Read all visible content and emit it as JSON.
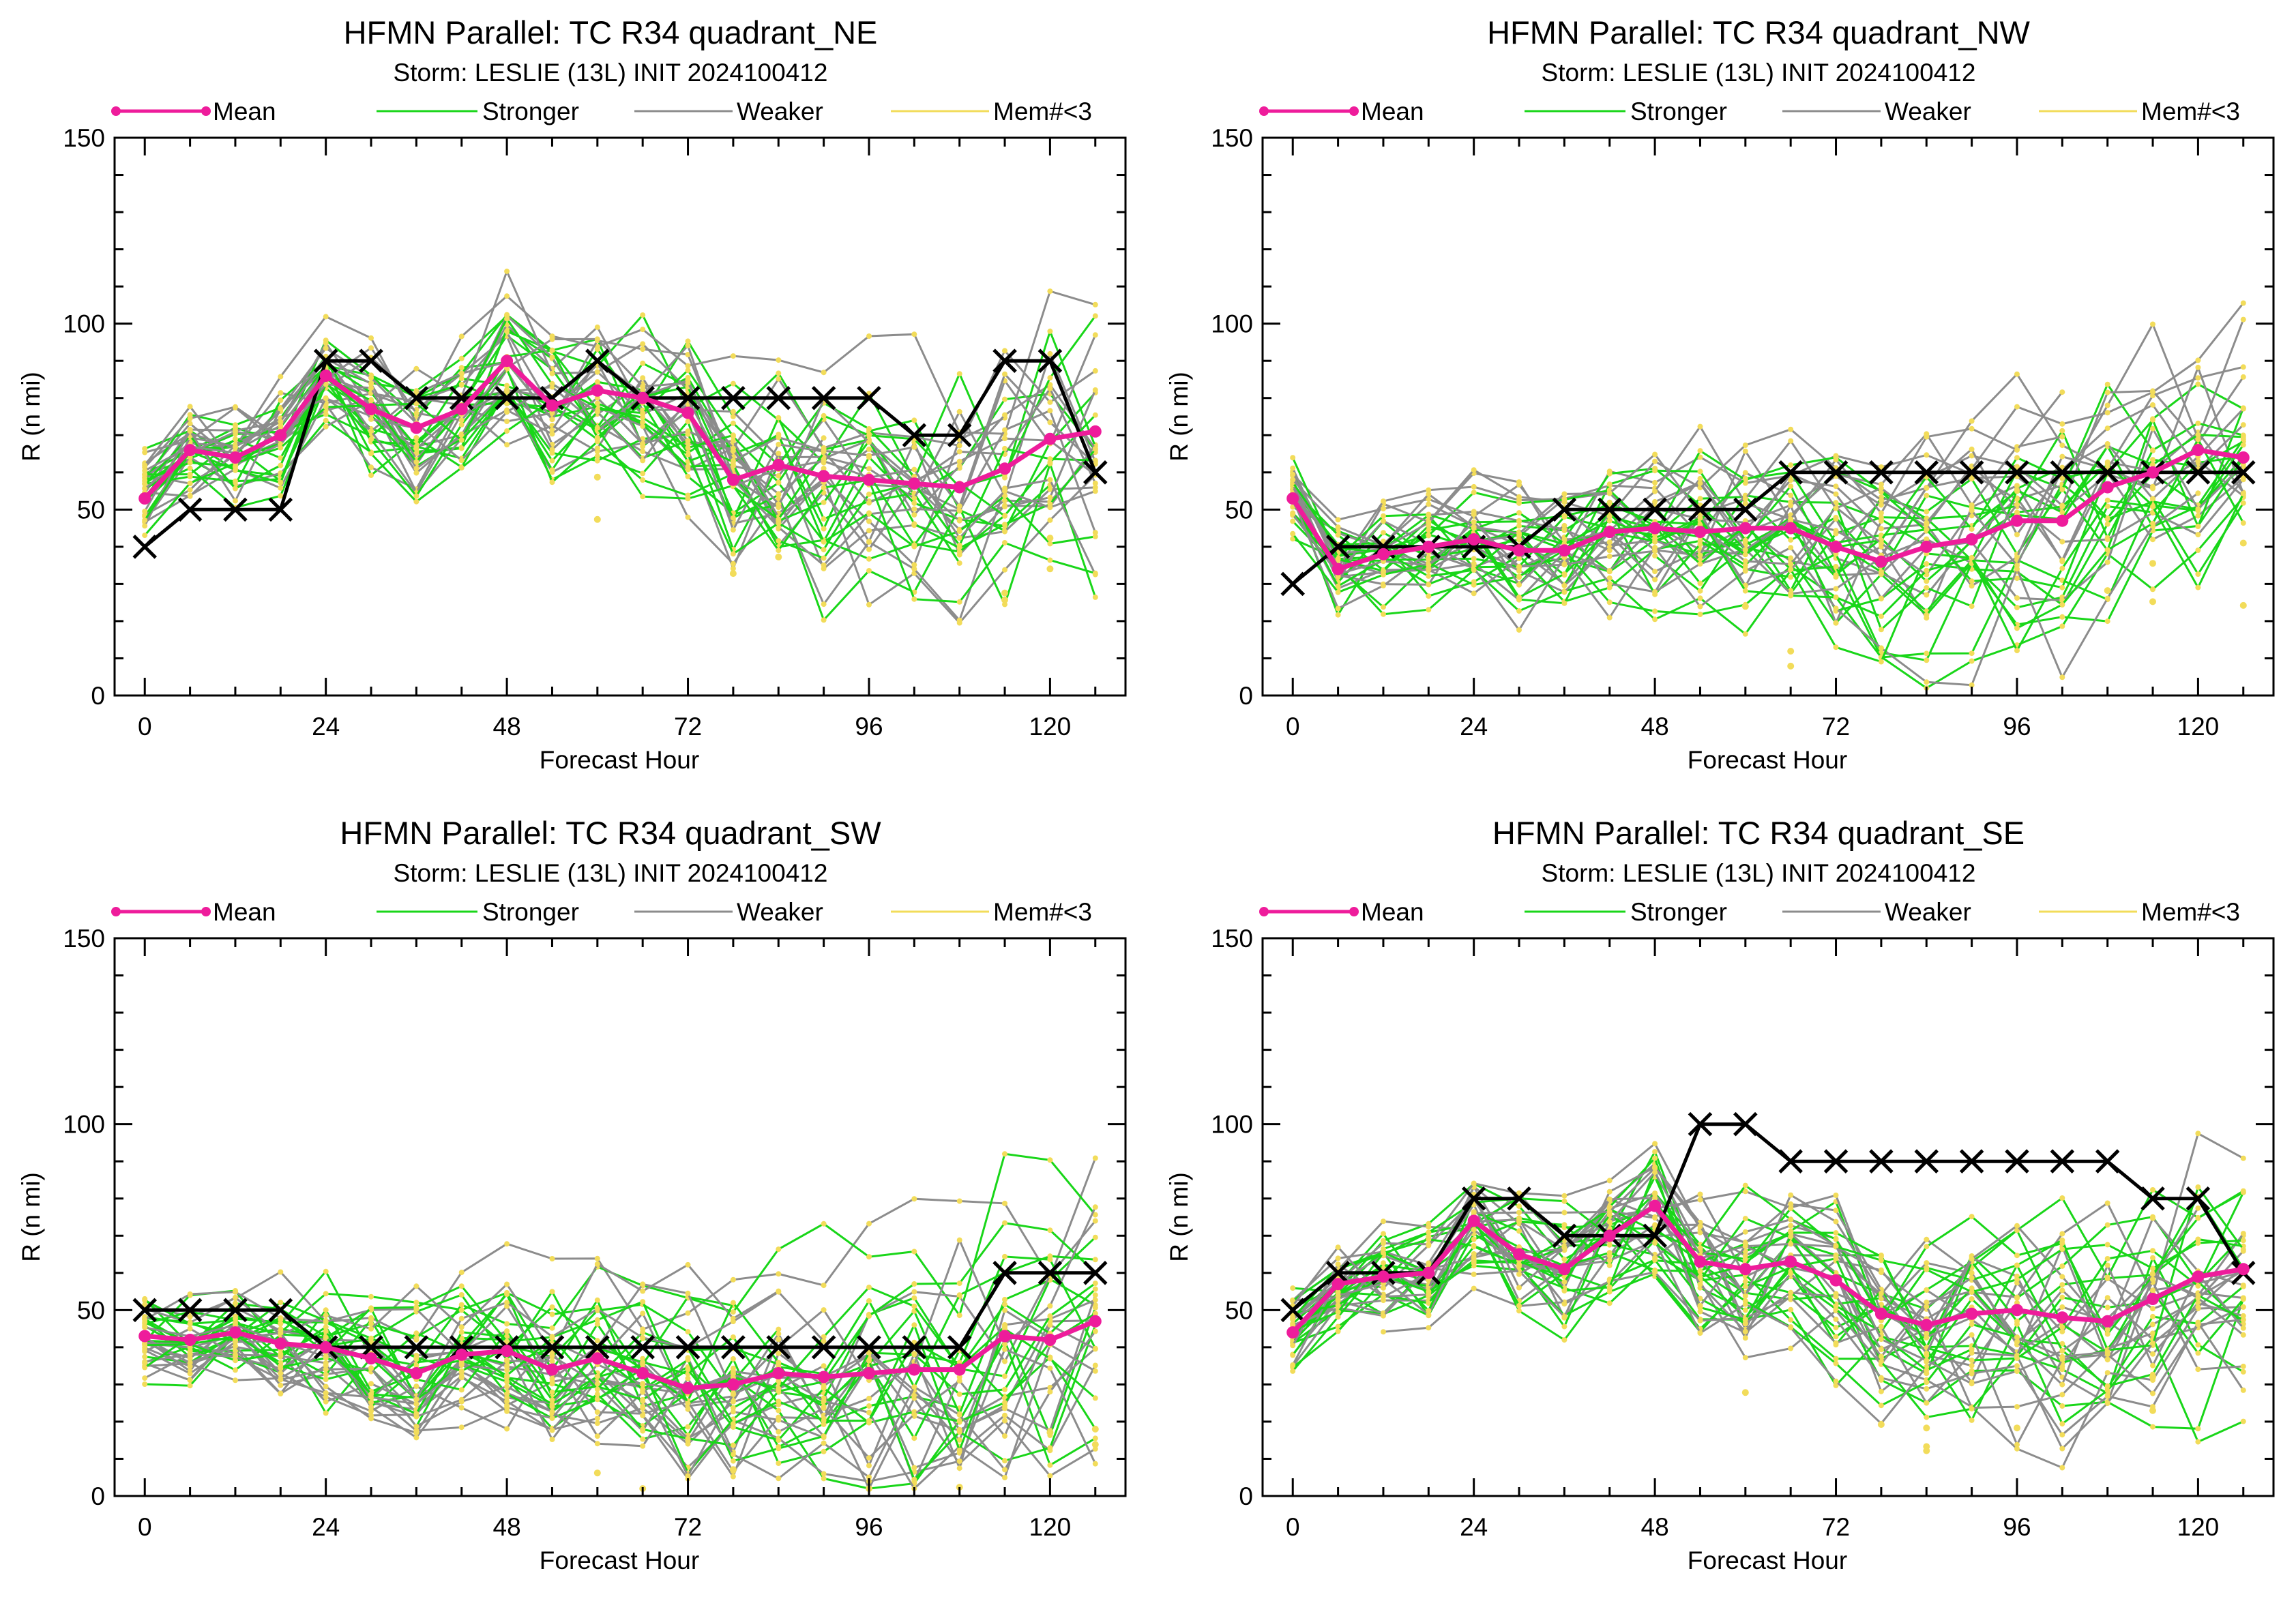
{
  "legend": {
    "mean": "Mean",
    "stronger": "Stronger",
    "weaker": "Weaker",
    "mem": "Mem#<3",
    "colors": {
      "mean": "#ee1c9b",
      "stronger": "#19d619",
      "weaker": "#8c8c8c",
      "mem": "#f2dc5a",
      "best_track": "#000000"
    }
  },
  "chart_data": [
    {
      "type": "line",
      "title": "HFMN Parallel: TC  R34 quadrant_NE",
      "subtitle": "Storm: LESLIE (13L) INIT 2024100412",
      "xlabel": "Forecast Hour",
      "ylabel": "R (n mi)",
      "xlim": [
        -4,
        130
      ],
      "ylim": [
        0,
        150
      ],
      "xticks": [
        0,
        24,
        48,
        72,
        96,
        120
      ],
      "yticks": [
        0,
        50,
        100,
        150
      ],
      "legend_position": "top",
      "x": [
        0,
        6,
        12,
        18,
        24,
        30,
        36,
        42,
        48,
        54,
        60,
        66,
        72,
        78,
        84,
        90,
        96,
        102,
        108,
        114,
        120,
        126
      ],
      "series": [
        {
          "name": "Mean",
          "values": [
            53,
            66,
            64,
            70,
            86,
            77,
            72,
            77,
            90,
            78,
            82,
            80,
            76,
            58,
            62,
            59,
            58,
            57,
            56,
            61,
            69,
            71
          ]
        },
        {
          "values": [
            40,
            50,
            50,
            50,
            90,
            90,
            80,
            80,
            80,
            80,
            90,
            80,
            80,
            80,
            80,
            80,
            80,
            70,
            70,
            90,
            90,
            60
          ]
        }
      ]
    },
    {
      "type": "line",
      "title": "HFMN Parallel: TC  R34 quadrant_NW",
      "subtitle": "Storm: LESLIE (13L) INIT 2024100412",
      "xlabel": "Forecast Hour",
      "ylabel": "R (n mi)",
      "xlim": [
        -4,
        130
      ],
      "ylim": [
        0,
        150
      ],
      "xticks": [
        0,
        24,
        48,
        72,
        96,
        120
      ],
      "yticks": [
        0,
        50,
        100,
        150
      ],
      "legend_position": "top",
      "x": [
        0,
        6,
        12,
        18,
        24,
        30,
        36,
        42,
        48,
        54,
        60,
        66,
        72,
        78,
        84,
        90,
        96,
        102,
        108,
        114,
        120,
        126
      ],
      "series": [
        {
          "name": "Mean",
          "values": [
            53,
            34,
            38,
            40,
            42,
            39,
            39,
            44,
            45,
            44,
            45,
            45,
            40,
            36,
            40,
            42,
            47,
            47,
            56,
            60,
            66,
            64
          ]
        },
        {
          "values": [
            30,
            40,
            40,
            40,
            40,
            40,
            50,
            50,
            50,
            50,
            50,
            60,
            60,
            60,
            60,
            60,
            60,
            60,
            60,
            60,
            60,
            60
          ]
        }
      ]
    },
    {
      "type": "line",
      "title": "HFMN Parallel: TC  R34 quadrant_SW",
      "subtitle": "Storm: LESLIE (13L) INIT 2024100412",
      "xlabel": "Forecast Hour",
      "ylabel": "R (n mi)",
      "xlim": [
        -4,
        130
      ],
      "ylim": [
        0,
        150
      ],
      "xticks": [
        0,
        24,
        48,
        72,
        96,
        120
      ],
      "yticks": [
        0,
        50,
        100,
        150
      ],
      "legend_position": "top",
      "x": [
        0,
        6,
        12,
        18,
        24,
        30,
        36,
        42,
        48,
        54,
        60,
        66,
        72,
        78,
        84,
        90,
        96,
        102,
        108,
        114,
        120,
        126
      ],
      "series": [
        {
          "name": "Mean",
          "values": [
            43,
            42,
            44,
            41,
            40,
            37,
            33,
            38,
            39,
            34,
            37,
            33,
            29,
            30,
            33,
            32,
            33,
            34,
            34,
            43,
            42,
            47
          ]
        },
        {
          "values": [
            50,
            50,
            50,
            50,
            40,
            40,
            40,
            40,
            40,
            40,
            40,
            40,
            40,
            40,
            40,
            40,
            40,
            40,
            40,
            60,
            60,
            60
          ]
        }
      ]
    },
    {
      "type": "line",
      "title": "HFMN Parallel: TC  R34 quadrant_SE",
      "subtitle": "Storm: LESLIE (13L) INIT 2024100412",
      "xlabel": "Forecast Hour",
      "ylabel": "R (n mi)",
      "xlim": [
        -4,
        130
      ],
      "ylim": [
        0,
        150
      ],
      "xticks": [
        0,
        24,
        48,
        72,
        96,
        120
      ],
      "yticks": [
        0,
        50,
        100,
        150
      ],
      "legend_position": "top",
      "x": [
        0,
        6,
        12,
        18,
        24,
        30,
        36,
        42,
        48,
        54,
        60,
        66,
        72,
        78,
        84,
        90,
        96,
        102,
        108,
        114,
        120,
        126
      ],
      "series": [
        {
          "name": "Mean",
          "values": [
            44,
            57,
            59,
            60,
            74,
            65,
            61,
            70,
            78,
            63,
            61,
            63,
            58,
            49,
            46,
            49,
            50,
            48,
            47,
            53,
            59,
            61
          ]
        },
        {
          "values": [
            50,
            60,
            60,
            60,
            80,
            80,
            70,
            70,
            70,
            100,
            100,
            90,
            90,
            90,
            90,
            90,
            90,
            90,
            90,
            80,
            80,
            60
          ]
        }
      ]
    }
  ]
}
